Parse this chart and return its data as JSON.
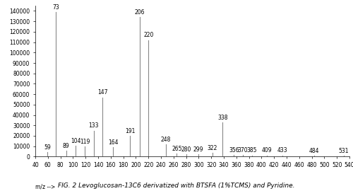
{
  "title": "FIG. 2 Levoglucosan-13C6 derivatized with BTSFA (1%TCMS) and Pyridine.",
  "xlabel": "m/z -->",
  "xlim": [
    40,
    540
  ],
  "ylim": [
    0,
    145000
  ],
  "yticks": [
    0,
    10000,
    20000,
    30000,
    40000,
    50000,
    60000,
    70000,
    80000,
    90000,
    100000,
    110000,
    120000,
    130000,
    140000
  ],
  "xticks": [
    40,
    60,
    80,
    100,
    120,
    140,
    160,
    180,
    200,
    220,
    240,
    260,
    280,
    300,
    320,
    340,
    360,
    380,
    400,
    420,
    440,
    460,
    480,
    500,
    520,
    540
  ],
  "peaks": [
    {
      "mz": 59,
      "intensity": 4500
    },
    {
      "mz": 73,
      "intensity": 139000
    },
    {
      "mz": 89,
      "intensity": 5500
    },
    {
      "mz": 104,
      "intensity": 10500
    },
    {
      "mz": 119,
      "intensity": 9500
    },
    {
      "mz": 133,
      "intensity": 25000
    },
    {
      "mz": 147,
      "intensity": 57000
    },
    {
      "mz": 164,
      "intensity": 9000
    },
    {
      "mz": 191,
      "intensity": 20000
    },
    {
      "mz": 206,
      "intensity": 134000
    },
    {
      "mz": 220,
      "intensity": 112000
    },
    {
      "mz": 248,
      "intensity": 12000
    },
    {
      "mz": 265,
      "intensity": 3000
    },
    {
      "mz": 280,
      "intensity": 2500
    },
    {
      "mz": 299,
      "intensity": 2000
    },
    {
      "mz": 322,
      "intensity": 3500
    },
    {
      "mz": 338,
      "intensity": 33000
    },
    {
      "mz": 356,
      "intensity": 1500
    },
    {
      "mz": 370,
      "intensity": 1500
    },
    {
      "mz": 385,
      "intensity": 1200
    },
    {
      "mz": 409,
      "intensity": 1200
    },
    {
      "mz": 433,
      "intensity": 1200
    },
    {
      "mz": 484,
      "intensity": 1000
    },
    {
      "mz": 531,
      "intensity": 800
    }
  ],
  "labeled_peaks": [
    59,
    73,
    89,
    104,
    119,
    133,
    147,
    164,
    191,
    206,
    220,
    248,
    265,
    280,
    299,
    322,
    338,
    356,
    370,
    385,
    409,
    433,
    484,
    531
  ],
  "bar_color": "#888888",
  "background_color": "#ffffff",
  "tick_fontsize": 5.5,
  "label_fontsize": 5.5,
  "title_fontsize": 6.5
}
